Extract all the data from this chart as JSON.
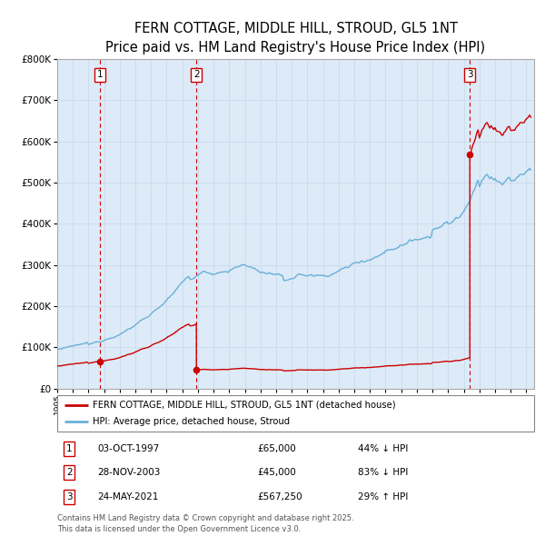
{
  "title": "FERN COTTAGE, MIDDLE HILL, STROUD, GL5 1NT",
  "subtitle": "Price paid vs. HM Land Registry's House Price Index (HPI)",
  "title_fontsize": 10.5,
  "legend_line1": "FERN COTTAGE, MIDDLE HILL, STROUD, GL5 1NT (detached house)",
  "legend_line2": "HPI: Average price, detached house, Stroud",
  "transactions": [
    {
      "label": "1",
      "date_str": "03-OCT-1997",
      "date_num": 1997.75,
      "price": 65000,
      "pct": "44%",
      "dir": "↓"
    },
    {
      "label": "2",
      "date_str": "28-NOV-2003",
      "date_num": 2003.9,
      "price": 45000,
      "pct": "83%",
      "dir": "↓"
    },
    {
      "label": "3",
      "date_str": "24-MAY-2021",
      "date_num": 2021.39,
      "price": 567250,
      "pct": "29%",
      "dir": "↑"
    }
  ],
  "hpi_color": "#6ab0d8",
  "price_color": "#cc0000",
  "bg_color": "#ddeaf7",
  "grid_color": "#c5d8ec",
  "vline_color": "#cc0000",
  "ylim": [
    0,
    800000
  ],
  "yticks": [
    0,
    100000,
    200000,
    300000,
    400000,
    500000,
    600000,
    700000,
    800000
  ],
  "ytick_labels": [
    "£0",
    "£100K",
    "£200K",
    "£300K",
    "£400K",
    "£500K",
    "£600K",
    "£700K",
    "£800K"
  ],
  "xlim_start": 1995.0,
  "xlim_end": 2025.5,
  "footer": "Contains HM Land Registry data © Crown copyright and database right 2025.\nThis data is licensed under the Open Government Licence v3.0."
}
